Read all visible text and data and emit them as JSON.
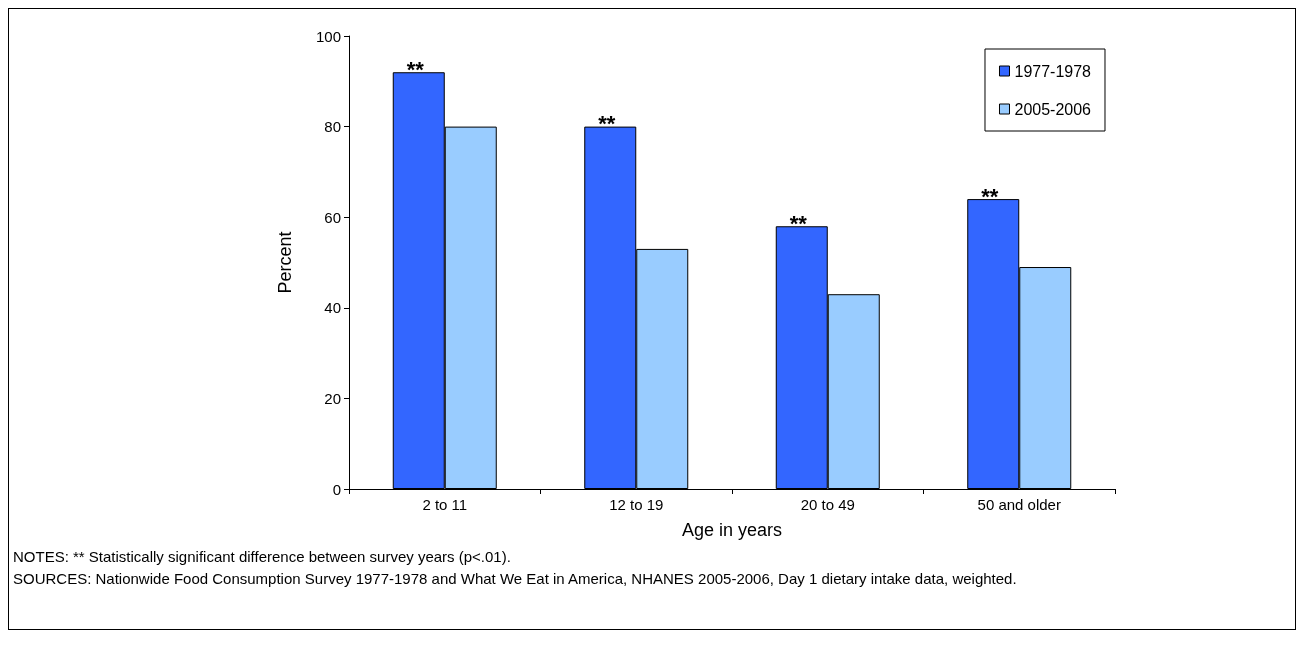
{
  "chart_data": {
    "type": "bar",
    "xlabel": "Age in years",
    "ylabel": "Percent",
    "categories": [
      "2 to 11",
      "12 to 19",
      "20 to 49",
      "50 and older"
    ],
    "series": [
      {
        "name": "1977-1978",
        "color": "#3366ff",
        "values": [
          92,
          80,
          58,
          64
        ]
      },
      {
        "name": "2005-2006",
        "color": "#99ccff",
        "values": [
          80,
          53,
          43,
          49
        ]
      }
    ],
    "ylim": [
      0,
      100
    ],
    "yticks": [
      0,
      20,
      40,
      60,
      80,
      100
    ],
    "grid": false,
    "legend": "top right",
    "annotations": [
      {
        "text": "**",
        "x": "2 to 11",
        "y": 92
      },
      {
        "text": "**",
        "x": "12 to 19",
        "y": 80
      },
      {
        "text": "**",
        "x": "20 to 49",
        "y": 58
      },
      {
        "text": "**",
        "x": "50 and older",
        "y": 64
      },
      "NOTES: ** Statistically significant difference between survey years (p<.01).",
      "SOURCES: Nationwide Food Consumption Survey 1977-1978 and What We Eat in America, NHANES 2005-2006, Day 1 dietary intake data, weighted."
    ]
  }
}
